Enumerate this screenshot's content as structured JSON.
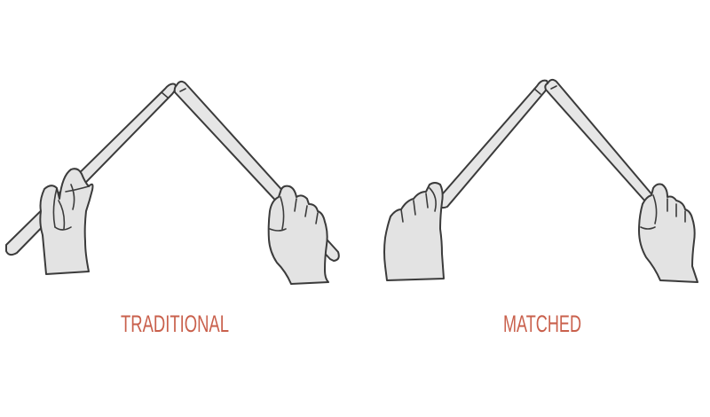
{
  "diagram": {
    "grips": [
      {
        "label": "TRADITIONAL"
      },
      {
        "label": "MATCHED"
      }
    ],
    "colors": {
      "label": "#c9604c",
      "hand_fill": "#e3e3e3",
      "stick_fill": "#e6e6e6",
      "outline": "#3b3b3b",
      "background": "#ffffff"
    }
  }
}
